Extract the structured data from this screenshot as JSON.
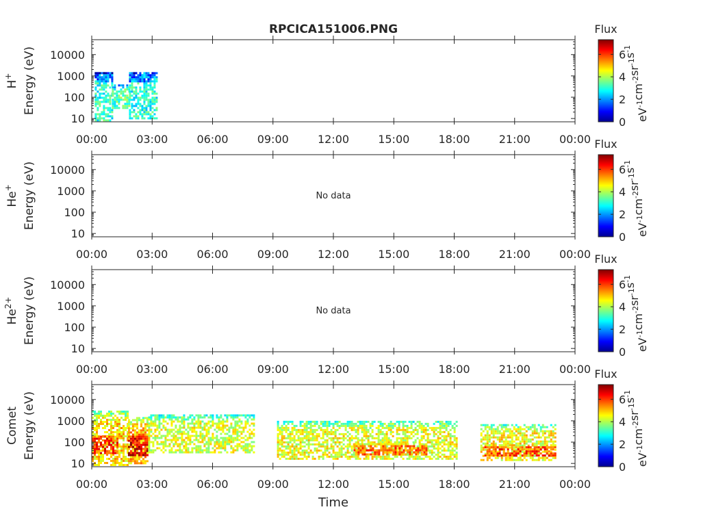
{
  "chart_data": {
    "type": "heatmap",
    "title": "RPCICA151006.PNG",
    "xlabel": "Time",
    "x_ticks": [
      "00:00",
      "03:00",
      "06:00",
      "09:00",
      "12:00",
      "15:00",
      "18:00",
      "21:00",
      "00:00"
    ],
    "x_range_hours": [
      0,
      24
    ],
    "y_scale": "log",
    "y_range": [
      7,
      50000
    ],
    "y_ticks": [
      10,
      100,
      1000,
      10000
    ],
    "colorbar": {
      "title": "Flux",
      "label": "eV-1cm-2sr-1s-1",
      "range": [
        0,
        7.3
      ],
      "ticks": [
        0,
        2,
        4,
        6
      ],
      "colormap": [
        "#00008f",
        "#0000ff",
        "#0080ff",
        "#00ffff",
        "#80ff80",
        "#ffff00",
        "#ff8000",
        "#ff0000",
        "#800000"
      ]
    },
    "panels": [
      {
        "species": "H+",
        "ylabel": "Energy (eV)",
        "no_data_text": "",
        "flux_regions": [
          {
            "t0": 0.15,
            "t1": 1.0,
            "e0": 5,
            "e1": 1500,
            "level": 3.0
          },
          {
            "t0": 0.15,
            "t1": 1.0,
            "e0": 500,
            "e1": 1500,
            "level": 1.7
          },
          {
            "t0": 1.0,
            "t1": 1.85,
            "e0": 30,
            "e1": 400,
            "level": 3.3
          },
          {
            "t0": 1.85,
            "t1": 3.2,
            "e0": 10,
            "e1": 1500,
            "level": 3.0
          },
          {
            "t0": 1.85,
            "t1": 3.0,
            "e0": 500,
            "e1": 1500,
            "level": 1.7
          }
        ]
      },
      {
        "species": "He+",
        "ylabel": "Energy (eV)",
        "no_data_text": "No data",
        "flux_regions": []
      },
      {
        "species": "He2+",
        "ylabel": "Energy (eV)",
        "no_data_text": "No data",
        "flux_regions": []
      },
      {
        "species": "Comet",
        "ylabel": "Energy (eV)",
        "no_data_text": "",
        "flux_regions": [
          {
            "t0": 0.0,
            "t1": 1.8,
            "e0": 8,
            "e1": 3000,
            "level": 4.8
          },
          {
            "t0": 0.0,
            "t1": 1.3,
            "e0": 30,
            "e1": 250,
            "level": 6.0
          },
          {
            "t0": 1.8,
            "t1": 2.8,
            "e0": 10,
            "e1": 1500,
            "level": 5.0
          },
          {
            "t0": 1.8,
            "t1": 2.8,
            "e0": 25,
            "e1": 250,
            "level": 6.6
          },
          {
            "t0": 2.8,
            "t1": 8.1,
            "e0": 30,
            "e1": 2000,
            "level": 4.3
          },
          {
            "t0": 9.2,
            "t1": 18.1,
            "e0": 15,
            "e1": 1000,
            "level": 4.4
          },
          {
            "t0": 13.0,
            "t1": 16.6,
            "e0": 25,
            "e1": 90,
            "level": 5.6
          },
          {
            "t0": 19.3,
            "t1": 23.0,
            "e0": 15,
            "e1": 700,
            "level": 4.5
          },
          {
            "t0": 19.5,
            "t1": 23.0,
            "e0": 25,
            "e1": 80,
            "level": 5.8
          }
        ]
      }
    ],
    "data_gaps_hours": [
      [
        8.1,
        9.2
      ],
      [
        18.1,
        19.3
      ],
      [
        23.0,
        24.0
      ]
    ]
  }
}
